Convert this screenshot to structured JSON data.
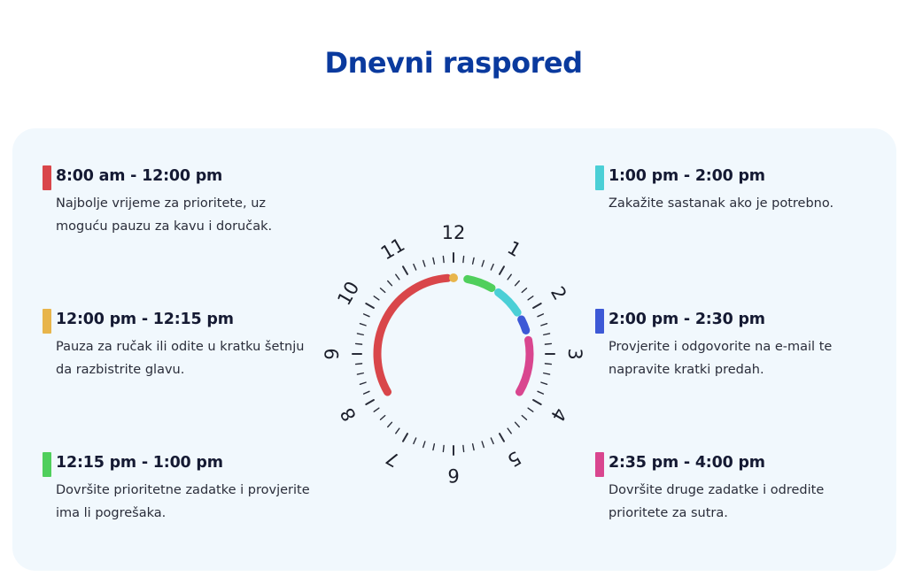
{
  "title": "Dnevni raspored",
  "schedule": [
    {
      "time": "8:00 am - 12:00 pm",
      "desc": "Najbolje vrijeme za prioritete, uz moguću pauzu za kavu i doručak.",
      "color": "#d9464a"
    },
    {
      "time": "12:00 pm - 12:15 pm",
      "desc": "Pauza za ručak ili odite u kratku šetnju da razbistrite glavu.",
      "color": "#e8b54b"
    },
    {
      "time": "12:15 pm - 1:00 pm",
      "desc": "Dovršite prioritetne zadatke i provjerite ima li pogrešaka.",
      "color": "#50cf5c"
    },
    {
      "time": "1:00 pm - 2:00 pm",
      "desc": "Zakažite sastanak ako je potrebno.",
      "color": "#4bcfd6"
    },
    {
      "time": "2:00 pm - 2:30 pm",
      "desc": "Provjerite i odgovorite na e-mail te napravite kratki predah.",
      "color": "#3d59d6"
    },
    {
      "time": "2:35 pm - 4:00 pm",
      "desc": "Dovršite druge zadatke i odredite prioritete za sutra.",
      "color": "#d9468f"
    }
  ],
  "clock": {
    "numbers": [
      "12",
      "1",
      "2",
      "3",
      "4",
      "5",
      "6",
      "7",
      "8",
      "9",
      "10",
      "11"
    ],
    "arcs": [
      {
        "start_hour": 8.0,
        "end_hour": 11.85,
        "color": "#d9464a"
      },
      {
        "start_hour": 12.0,
        "end_hour": 12.0,
        "color": "#e8b54b"
      },
      {
        "start_hour": 12.35,
        "end_hour": 13.0,
        "color": "#50cf5c"
      },
      {
        "start_hour": 13.2,
        "end_hour": 13.9,
        "color": "#4bcfd6"
      },
      {
        "start_hour": 14.1,
        "end_hour": 14.4,
        "color": "#3d59d6"
      },
      {
        "start_hour": 14.65,
        "end_hour": 16.0,
        "color": "#d9468f"
      }
    ]
  }
}
